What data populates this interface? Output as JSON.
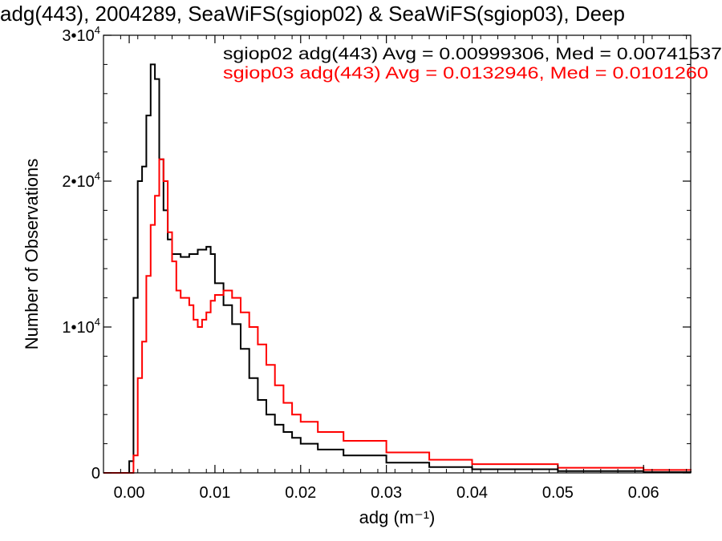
{
  "chart_data": {
    "type": "line",
    "title": "adg(443), 2004289, SeaWiFS(sgiop02) & SeaWiFS(sgiop03), Deep",
    "xlabel": "adg (m⁻¹)",
    "ylabel": "Number of Observations",
    "xlim": [
      -0.003,
      0.0655
    ],
    "ylim": [
      0,
      30000
    ],
    "xticks": [
      {
        "value": 0.0,
        "label": "0.00"
      },
      {
        "value": 0.01,
        "label": "0.01"
      },
      {
        "value": 0.02,
        "label": "0.02"
      },
      {
        "value": 0.03,
        "label": "0.03"
      },
      {
        "value": 0.04,
        "label": "0.04"
      },
      {
        "value": 0.05,
        "label": "0.05"
      },
      {
        "value": 0.06,
        "label": "0.06"
      }
    ],
    "yticks": [
      {
        "value": 0,
        "base": "0",
        "exp": ""
      },
      {
        "value": 10000,
        "base": "1•10",
        "exp": "4"
      },
      {
        "value": 20000,
        "base": "2•10",
        "exp": "4"
      },
      {
        "value": 30000,
        "base": "3•10",
        "exp": "4"
      }
    ],
    "grid": false,
    "legend_placement": "top-right",
    "series": [
      {
        "name": "sgiop02 adg(443) Avg = 0.00999306, Med = 0.00741537",
        "color": "#000000",
        "x": [
          -0.003,
          -0.0002,
          0.0,
          0.0005,
          0.001,
          0.0015,
          0.002,
          0.0025,
          0.003,
          0.0035,
          0.004,
          0.0045,
          0.005,
          0.006,
          0.007,
          0.008,
          0.009,
          0.0095,
          0.01,
          0.011,
          0.012,
          0.013,
          0.014,
          0.015,
          0.016,
          0.017,
          0.018,
          0.019,
          0.02,
          0.022,
          0.025,
          0.03,
          0.035,
          0.04,
          0.05,
          0.06,
          0.0655
        ],
        "y": [
          0,
          0,
          800,
          12000,
          20000,
          21000,
          24500,
          28000,
          27000,
          21500,
          18000,
          16000,
          15000,
          14800,
          15000,
          15300,
          15500,
          15000,
          13000,
          11500,
          10200,
          8500,
          6500,
          5000,
          4000,
          3300,
          2800,
          2400,
          2000,
          1600,
          1200,
          700,
          400,
          250,
          120,
          50,
          30
        ]
      },
      {
        "name": "sgiop03 adg(443) Avg = 0.0132946, Med = 0.0101260",
        "color": "#ff0000",
        "x": [
          -0.003,
          0.0,
          0.0005,
          0.001,
          0.0015,
          0.002,
          0.0025,
          0.003,
          0.0035,
          0.004,
          0.0045,
          0.005,
          0.0055,
          0.006,
          0.0065,
          0.007,
          0.0075,
          0.008,
          0.0085,
          0.009,
          0.0095,
          0.01,
          0.011,
          0.012,
          0.013,
          0.014,
          0.015,
          0.016,
          0.017,
          0.018,
          0.019,
          0.02,
          0.022,
          0.025,
          0.03,
          0.035,
          0.04,
          0.05,
          0.06,
          0.0655
        ],
        "y": [
          0,
          0,
          1200,
          6500,
          9000,
          13500,
          17000,
          19000,
          21500,
          20000,
          16500,
          14500,
          12500,
          12000,
          12000,
          11500,
          10500,
          10000,
          10500,
          11000,
          11800,
          12200,
          12500,
          12000,
          11000,
          10000,
          8800,
          7400,
          6000,
          4800,
          4000,
          3500,
          2800,
          2200,
          1400,
          900,
          600,
          350,
          200,
          150
        ]
      }
    ]
  }
}
